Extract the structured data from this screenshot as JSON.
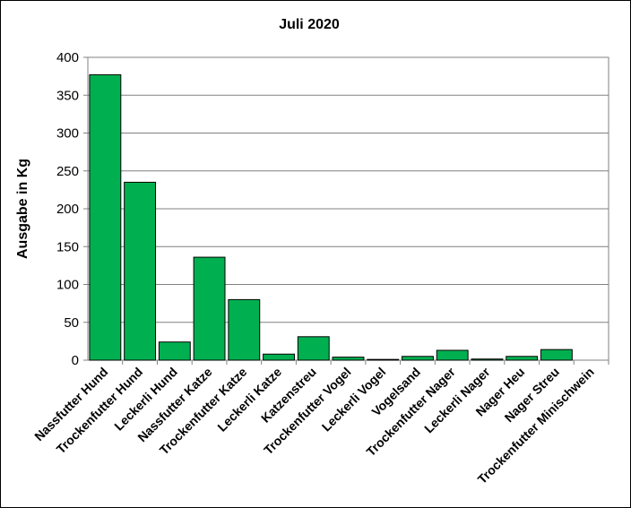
{
  "chart_data": {
    "type": "bar",
    "title": "Juli 2020",
    "ylabel": "Ausgabe in Kg",
    "xlabel": "",
    "ylim": [
      0,
      400
    ],
    "yticks": [
      0,
      50,
      100,
      150,
      200,
      250,
      300,
      350,
      400
    ],
    "grid": true,
    "legend": "none",
    "bar_color": "#00b050",
    "categories": [
      "Nassfutter Hund",
      "Trockenfutter Hund",
      "Leckerli Hund",
      "Nassfutter Katze",
      "Trockenfutter Katze",
      "Leckerli Katze",
      "Katzenstreu",
      "Trockenfutter Vogel",
      "Leckerli Vogel",
      "Vogelsand",
      "Trockenfutter Nager",
      "Leckerli Nager",
      "Nager Heu",
      "Nager Streu",
      "Trockenfutter Minischwein"
    ],
    "values": [
      377,
      235,
      24,
      136,
      80,
      8,
      31,
      4,
      1,
      5,
      13,
      1.5,
      5,
      14,
      0
    ]
  }
}
